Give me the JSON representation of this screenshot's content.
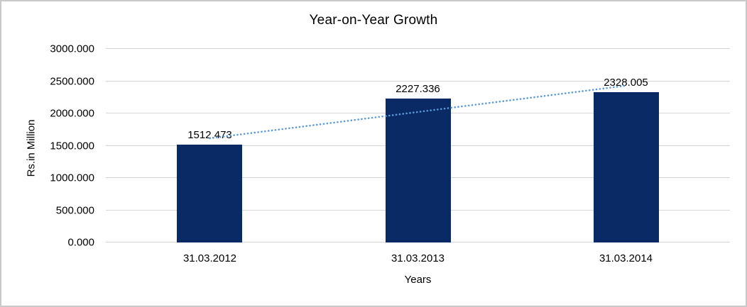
{
  "window": {
    "background_color": "#ffffff",
    "border_color": "#c9c9c9"
  },
  "chart_data": {
    "type": "bar",
    "title": "Year-on-Year Growth",
    "xlabel": "Years",
    "ylabel": "Rs.in Million",
    "categories": [
      "31.03.2012",
      "31.03.2013",
      "31.03.2014"
    ],
    "series": [
      {
        "name": "Year-on-Year Growth",
        "values": [
          1512.473,
          2227.336,
          2328.005
        ]
      }
    ],
    "data_labels": [
      "1512.473",
      "2227.336",
      "2328.005"
    ],
    "ylim": [
      0,
      3000
    ],
    "ytick_step": 500,
    "ytick_labels": [
      "0.000",
      "500.000",
      "1000.000",
      "1500.000",
      "2000.000",
      "2500.000",
      "3000.000"
    ],
    "grid": true,
    "legend": "none",
    "bar_color": "#0a2a66",
    "gridline_color": "#d6d6d6",
    "text_color": "#000000",
    "trendline": {
      "type": "linear",
      "style": "dotted",
      "color": "#5b9bd5"
    }
  }
}
